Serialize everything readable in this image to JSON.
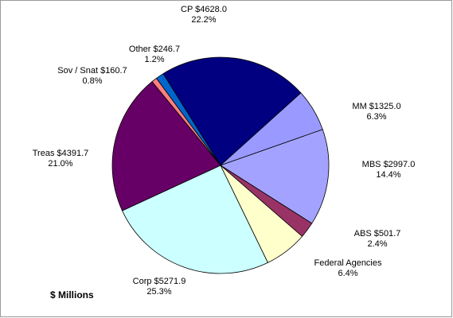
{
  "chart_data": {
    "type": "pie",
    "title": "$ Millions",
    "categories": [
      "CP $4628.0",
      "MM $1325.0",
      "MBS $2997.0",
      "ABS $501.7",
      "Federal Agencies",
      "Corp $5271.9",
      "Treas $4391.7",
      "Sov / Snat $160.7",
      "Other $246.7"
    ],
    "values": [
      22.2,
      6.3,
      14.4,
      2.4,
      6.4,
      25.3,
      21.0,
      0.8,
      1.2
    ],
    "value_labels": [
      "22.2%",
      "6.3%",
      "14.4%",
      "2.4%",
      "6.4%",
      "25.3%",
      "21.0%",
      "0.8%",
      "1.2%"
    ],
    "colors": [
      "#000080",
      "#9999ff",
      "#a3a3ff",
      "#993366",
      "#ffffcc",
      "#ccffff",
      "#660066",
      "#ff8080",
      "#0066cc"
    ]
  }
}
